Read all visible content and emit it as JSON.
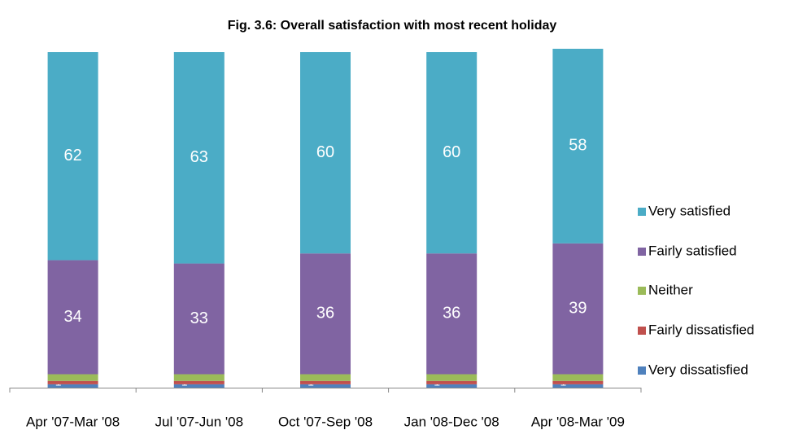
{
  "chart_data": {
    "type": "stacked_bar",
    "title": "Fig. 3.6: Overall satisfaction with most recent holiday",
    "categories": [
      "Apr '07-Mar '08",
      "Jul '07-Jun '08",
      "Oct '07-Sep '08",
      "Jan '08-Dec '08",
      "Apr '08-Mar '09"
    ],
    "series": [
      {
        "name": "Very dissatisfied",
        "color": "#4f81bd",
        "values": [
          1,
          1,
          1,
          1,
          1
        ]
      },
      {
        "name": "Fairly dissatisfied",
        "color": "#c0504d",
        "values": [
          1,
          1,
          1,
          1,
          1
        ]
      },
      {
        "name": "Neither",
        "color": "#9bbb59",
        "values": [
          2,
          2,
          2,
          2,
          2
        ]
      },
      {
        "name": "Fairly satisfied",
        "color": "#8064a2",
        "values": [
          34,
          33,
          36,
          36,
          39
        ]
      },
      {
        "name": "Very satisfied",
        "color": "#4bacc6",
        "values": [
          62,
          63,
          60,
          60,
          58
        ]
      }
    ],
    "ylim": [
      0,
      100
    ],
    "legend": "right"
  }
}
